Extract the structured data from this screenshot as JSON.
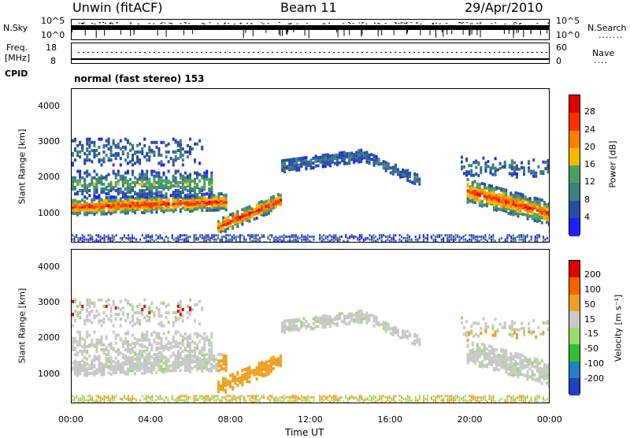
{
  "header": {
    "title": "Unwin (fitACF)",
    "beam": "Beam 11",
    "date": "29/Apr/2010"
  },
  "top_panels": {
    "nsky_label": "N.Sky",
    "nsky_ticks": [
      "10^5",
      "10^0"
    ],
    "nsearch_label": "N.Search",
    "nsearch_ticks": [
      "10^5",
      "10^0"
    ],
    "freq_label": "Freq.",
    "freq_unit": "[MHz]",
    "freq_ticks": [
      "18",
      "8"
    ],
    "nave_label": "Nave",
    "nave_ticks": [
      "60",
      "0"
    ],
    "cpid_label": "CPID",
    "cpid_text": "normal (fast stereo) 153"
  },
  "colors": {
    "power_scale": [
      "#1f1fff",
      "#2a4aa8",
      "#3b7f7f",
      "#4aa05a",
      "#f5b800",
      "#ff7f00",
      "#ff3000",
      "#e00000"
    ],
    "velocity_scale": [
      "#2040c0",
      "#2080c0",
      "#30c030",
      "#9adc6a",
      "#c8c8c8",
      "#f0a020",
      "#ff6000",
      "#e00000"
    ]
  },
  "chart_data": [
    {
      "type": "heatmap",
      "name": "power",
      "ylabel": "Slant Range [km]",
      "ylim": [
        180,
        4500
      ],
      "yticks": [
        "4000",
        "3000",
        "2000",
        "1000"
      ],
      "colorbar_label": "Power [dB]",
      "colorbar_ticks": [
        "28",
        "24",
        "20",
        "16",
        "12",
        "8",
        "4"
      ],
      "colorbar_range": [
        0,
        32
      ]
    },
    {
      "type": "heatmap",
      "name": "velocity",
      "ylabel": "Slant Range [km]",
      "ylim": [
        180,
        4500
      ],
      "yticks": [
        "4000",
        "3000",
        "2000",
        "1000"
      ],
      "colorbar_label": "Velocity [m s⁻¹]",
      "colorbar_ticks": [
        "200",
        "100",
        "50",
        "15",
        "-15",
        "-50",
        "-100",
        "-200"
      ]
    }
  ],
  "time_axis": {
    "xlabel": "Time UT",
    "xticks": [
      "00:00",
      "04:00",
      "08:00",
      "12:00",
      "16:00",
      "20:00",
      "00:00"
    ],
    "xlim": [
      0,
      24
    ]
  }
}
